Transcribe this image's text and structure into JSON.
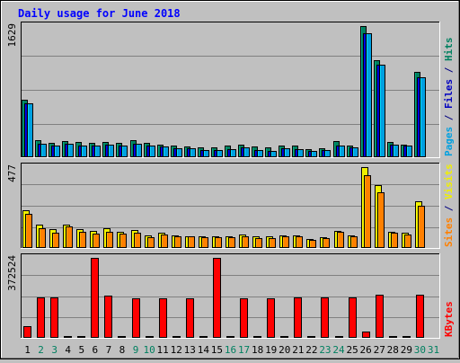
{
  "chart_data": {
    "type": "bar",
    "title": "Daily usage for June 2018",
    "days": [
      "1",
      "2",
      "3",
      "4",
      "5",
      "6",
      "7",
      "8",
      "9",
      "10",
      "11",
      "12",
      "13",
      "14",
      "15",
      "16",
      "17",
      "18",
      "19",
      "20",
      "21",
      "22",
      "23",
      "24",
      "25",
      "26",
      "27",
      "28",
      "29",
      "30",
      "31"
    ],
    "weekend_days": [
      "2",
      "3",
      "9",
      "10",
      "16",
      "17",
      "23",
      "24",
      "30",
      "31"
    ],
    "panels": [
      {
        "id": "hits-panel",
        "ymax_label": "1629",
        "ymax": 1629,
        "legend": [
          {
            "text": "Pages",
            "color": "#00A0E0"
          },
          {
            "text": " / ",
            "color": "#000080"
          },
          {
            "text": "Files",
            "color": "#0000C0"
          },
          {
            "text": " / ",
            "color": "#000080"
          },
          {
            "text": "Hits",
            "color": "#008060"
          }
        ],
        "series": [
          {
            "name": "Hits",
            "color": "#008060",
            "values": [
              710,
              210,
              180,
              200,
              190,
              180,
              190,
              180,
              210,
              180,
              160,
              150,
              130,
              120,
              120,
              140,
              160,
              130,
              120,
              150,
              140,
              100,
              110,
              200,
              150,
              1629,
              1200,
              190,
              160,
              1060,
              0
            ]
          },
          {
            "name": "Files",
            "color": "#0000C0",
            "values": [
              670,
              170,
              150,
              170,
              150,
              140,
              160,
              150,
              170,
              150,
              130,
              110,
              110,
              90,
              90,
              100,
              120,
              90,
              80,
              110,
              100,
              80,
              90,
              150,
              120,
              1540,
              1150,
              160,
              140,
              990,
              0
            ]
          },
          {
            "name": "Pages",
            "color": "#00A0E0",
            "values": [
              670,
              170,
              150,
              170,
              150,
              140,
              160,
              150,
              170,
              150,
              130,
              110,
              110,
              90,
              90,
              100,
              120,
              90,
              80,
              110,
              100,
              80,
              90,
              150,
              120,
              1540,
              1150,
              160,
              140,
              990,
              0
            ]
          }
        ]
      },
      {
        "id": "visits-panel",
        "ymax_label": "477",
        "ymax": 477,
        "legend": [
          {
            "text": "Sites",
            "color": "#FF8000"
          },
          {
            "text": " / ",
            "color": "#000080"
          },
          {
            "text": "Visits",
            "color": "#F0F000"
          }
        ],
        "series": [
          {
            "name": "Visits",
            "color": "#F0F000",
            "values": [
              220,
              140,
              110,
              140,
              110,
              100,
              115,
              95,
              105,
              75,
              90,
              75,
              70,
              70,
              70,
              70,
              80,
              70,
              70,
              75,
              75,
              55,
              65,
              100,
              75,
              477,
              370,
              95,
              90,
              275,
              0
            ]
          },
          {
            "name": "Sites",
            "color": "#FF8000",
            "values": [
              200,
              115,
              90,
              125,
              95,
              85,
              95,
              85,
              90,
              65,
              80,
              70,
              70,
              65,
              65,
              65,
              70,
              60,
              60,
              70,
              70,
              50,
              60,
              95,
              70,
              430,
              330,
              90,
              80,
              250,
              0
            ]
          }
        ]
      },
      {
        "id": "kbytes-panel",
        "ymax_label": "372524",
        "ymax": 372524,
        "legend": [
          {
            "text": "KBytes",
            "color": "#FF0000"
          }
        ],
        "series": [
          {
            "name": "KBytes",
            "color": "#FF0000",
            "values": [
              55000,
              190000,
              190000,
              8000,
              10000,
              372524,
              195000,
              9000,
              185000,
              8000,
              185000,
              10000,
              185000,
              8000,
              372524,
              10000,
              185000,
              10000,
              185000,
              3000,
              190000,
              10000,
              190000,
              10000,
              190000,
              30000,
              200000,
              10000,
              10000,
              200000,
              0
            ]
          }
        ]
      }
    ]
  }
}
